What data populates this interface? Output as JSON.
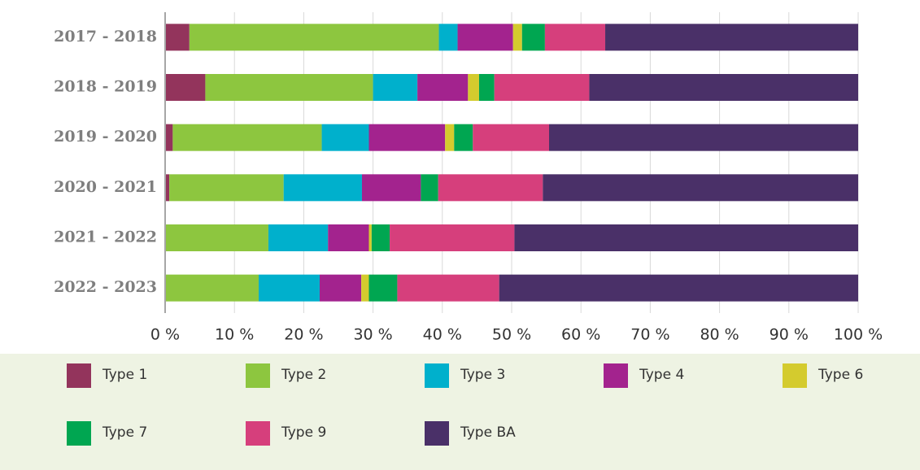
{
  "chart_data": {
    "type": "stacked_bar_horizontal",
    "categories": [
      "2017 - 2018",
      "2018 - 2019",
      "2019 - 2020",
      "2020 - 2021",
      "2021 - 2022",
      "2022 - 2023"
    ],
    "series": [
      {
        "name": "Type 1",
        "color": "#93345c",
        "values": [
          3.5,
          5.8,
          1.1,
          0.6,
          0,
          0
        ]
      },
      {
        "name": "Type 2",
        "color": "#8dc63f",
        "values": [
          36,
          24.2,
          21.5,
          16.5,
          14.9,
          13.5
        ]
      },
      {
        "name": "Type 3",
        "color": "#00b0cc",
        "values": [
          2.7,
          6.4,
          6.8,
          11.3,
          8.6,
          8.8
        ]
      },
      {
        "name": "Type 4",
        "color": "#a3238e",
        "values": [
          8,
          7.3,
          11,
          8.5,
          5.9,
          6
        ]
      },
      {
        "name": "Type 6",
        "color": "#d4cb2e",
        "values": [
          1.3,
          1.6,
          1.3,
          0,
          0.4,
          1.1
        ]
      },
      {
        "name": "Type 7",
        "color": "#00a651",
        "values": [
          3.3,
          2.2,
          2.7,
          2.5,
          2.6,
          4.1
        ]
      },
      {
        "name": "Type 9",
        "color": "#d63f7c",
        "values": [
          8.7,
          13.7,
          11,
          15.1,
          18,
          14.7
        ]
      },
      {
        "name": "Type BA",
        "color": "#4a3068",
        "values": [
          36.5,
          38.8,
          44.6,
          45.5,
          49.6,
          51.8
        ]
      }
    ],
    "xlim": [
      0,
      100
    ],
    "xticks": [
      {
        "value": 0,
        "label": "0 %"
      },
      {
        "value": 10,
        "label": "10 %"
      },
      {
        "value": 20,
        "label": "20 %"
      },
      {
        "value": 30,
        "label": "30 %"
      },
      {
        "value": 40,
        "label": "40 %"
      },
      {
        "value": 50,
        "label": "50 %"
      },
      {
        "value": 60,
        "label": "60 %"
      },
      {
        "value": 70,
        "label": "70 %"
      },
      {
        "value": 80,
        "label": "80 %"
      },
      {
        "value": 90,
        "label": "90 %"
      },
      {
        "value": 100,
        "label": "100 %"
      }
    ],
    "grid": true,
    "legend": "bottom"
  }
}
